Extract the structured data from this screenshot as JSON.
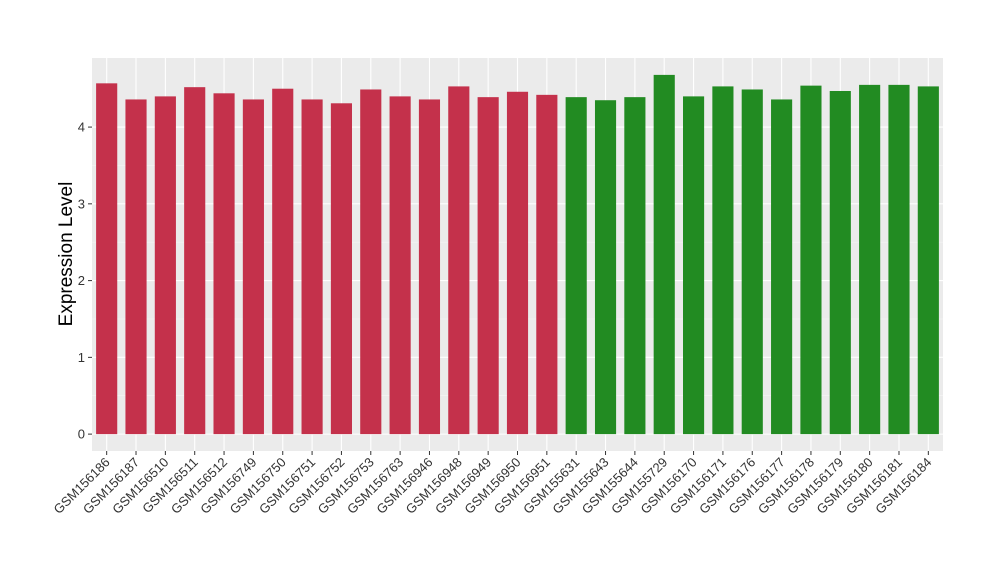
{
  "chart_data": {
    "type": "bar",
    "ylabel": "Expression Level",
    "xlabel": "",
    "ylim": [
      -0.22,
      4.9
    ],
    "yticks": [
      0,
      1,
      2,
      3,
      4
    ],
    "grid": true,
    "panel_background": "#EBEBEB",
    "categories": [
      "GSM156186",
      "GSM156187",
      "GSM156510",
      "GSM156511",
      "GSM156512",
      "GSM156749",
      "GSM156750",
      "GSM156751",
      "GSM156752",
      "GSM156753",
      "GSM156763",
      "GSM156946",
      "GSM156948",
      "GSM156949",
      "GSM156950",
      "GSM156951",
      "GSM155631",
      "GSM155643",
      "GSM155644",
      "GSM155729",
      "GSM156170",
      "GSM156171",
      "GSM156176",
      "GSM156177",
      "GSM156178",
      "GSM156179",
      "GSM156180",
      "GSM156181",
      "GSM156184"
    ],
    "values": [
      4.57,
      4.36,
      4.4,
      4.52,
      4.44,
      4.36,
      4.5,
      4.36,
      4.31,
      4.49,
      4.4,
      4.36,
      4.53,
      4.39,
      4.46,
      4.42,
      4.39,
      4.35,
      4.39,
      4.68,
      4.4,
      4.53,
      4.49,
      4.36,
      4.54,
      4.47,
      4.55,
      4.55,
      4.53
    ],
    "group_sizes": [
      16,
      13
    ],
    "colors": [
      "#C4314B",
      "#228B22"
    ]
  }
}
